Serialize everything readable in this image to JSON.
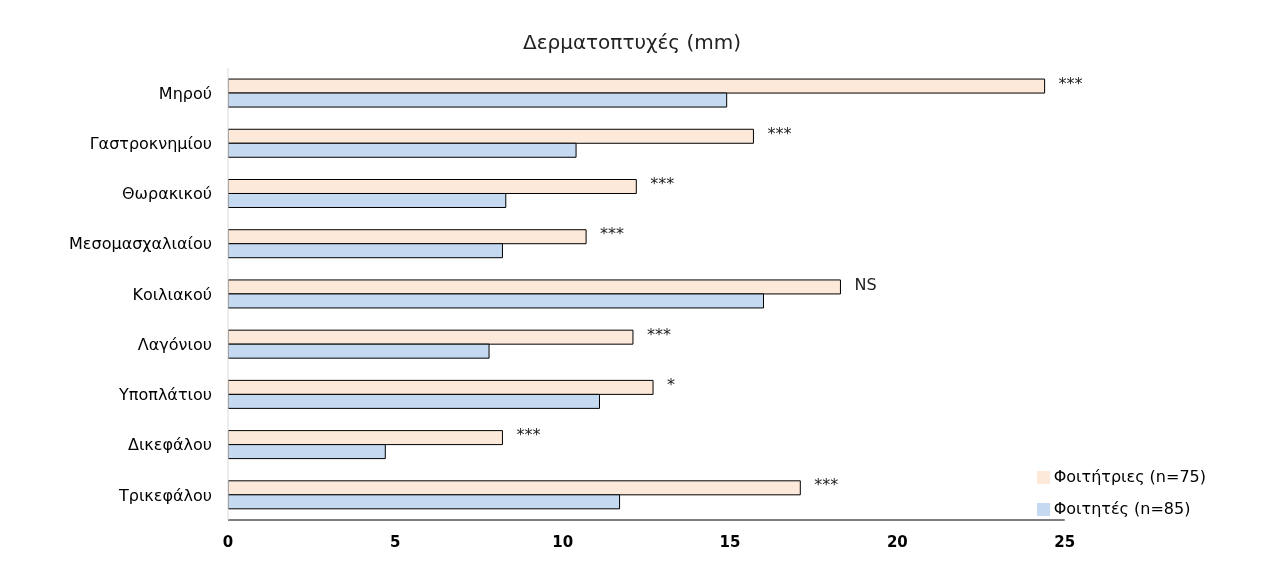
{
  "chart_data": {
    "type": "bar",
    "orientation": "horizontal",
    "title": "Δερματοπτυχές (mm)",
    "categories": [
      "Μηρού",
      "Γαστροκνημίου",
      "Θωρακικού",
      "Μεσομασχαλιαίου",
      "Κοιλιακού",
      "Λαγόνιου",
      "Υποπλάτιου",
      "Δικεφάλου",
      "Τρικεφάλου"
    ],
    "series": [
      {
        "name": "Φοιτήτριες (n=75)",
        "color": "#fde9d9",
        "values": [
          24.4,
          15.7,
          12.2,
          10.7,
          18.3,
          12.1,
          12.7,
          8.2,
          17.1
        ]
      },
      {
        "name": "Φοιτητές (n=85)",
        "color": "#c5d9f1",
        "values": [
          14.9,
          10.4,
          8.3,
          8.2,
          16.0,
          7.8,
          11.1,
          4.7,
          11.7
        ]
      }
    ],
    "xlim": [
      0,
      25
    ],
    "xticks": [
      0,
      5,
      10,
      15,
      20,
      25
    ],
    "grid": false,
    "legend": "bottom right",
    "annotations": [
      {
        "text": "***",
        "x": 24.4,
        "y": "Μηρού"
      },
      {
        "text": "***",
        "x": 15.7,
        "y": "Γαστροκνημίου"
      },
      {
        "text": "***",
        "x": 12.2,
        "y": "Θωρακικού"
      },
      {
        "text": "***",
        "x": 10.7,
        "y": "Μεσομασχαλιαίου"
      },
      {
        "text": "NS",
        "x": 18.3,
        "y": "Κοιλιακού"
      },
      {
        "text": "***",
        "x": 12.1,
        "y": "Λαγόνιου"
      },
      {
        "text": "*",
        "x": 12.7,
        "y": "Υποπλάτιου"
      },
      {
        "text": "***",
        "x": 8.2,
        "y": "Δικεφάλου"
      },
      {
        "text": "***",
        "x": 17.1,
        "y": "Τρικεφάλου"
      }
    ]
  }
}
